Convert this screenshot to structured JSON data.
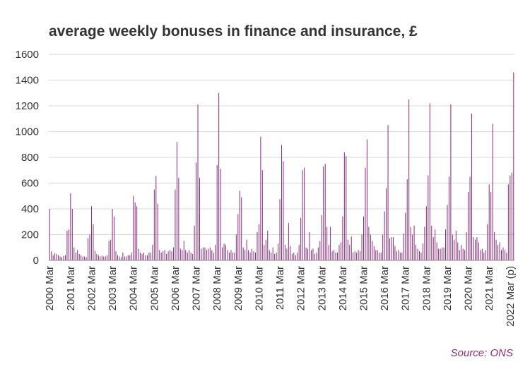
{
  "title": "average weekly bonuses in finance and insurance, £",
  "source": "Source: ONS",
  "colors": {
    "bar": "#8e2a7e",
    "axis": "#888888",
    "grid": "#d9d9d9",
    "text": "#333333"
  },
  "chart_data": {
    "type": "bar",
    "title": "average weekly bonuses in finance and insurance, £",
    "xlabel": "",
    "ylabel": "",
    "ylim": [
      0,
      1600
    ],
    "yticks": [
      0,
      200,
      400,
      600,
      800,
      1000,
      1200,
      1400,
      1600
    ],
    "grid": true,
    "legend": "none",
    "x_tick_labels": [
      "2000 Mar",
      "2001 Mar",
      "2002 Mar",
      "2003 Mar",
      "2004 Mar",
      "2005 Mar",
      "2006 Mar",
      "2007 Mar",
      "2008 Mar",
      "2009 Mar",
      "2010 Mar",
      "2011 Mar",
      "2012 Mar",
      "2013 Mar",
      "2014 Mar",
      "2015 Mar",
      "2016 Mar",
      "2017 Mar",
      "2018 Mar",
      "2019 Mar",
      "2020 Mar",
      "2021 Mar",
      "2022 Mar (p)"
    ],
    "frequency": "monthly",
    "start": "2000 Mar",
    "end": "2022 Mar (p)",
    "values": [
      400,
      70,
      40,
      55,
      50,
      40,
      30,
      25,
      35,
      40,
      230,
      240,
      520,
      400,
      100,
      60,
      80,
      50,
      40,
      30,
      30,
      25,
      170,
      200,
      420,
      280,
      75,
      50,
      40,
      30,
      35,
      30,
      30,
      40,
      150,
      160,
      400,
      340,
      70,
      40,
      30,
      25,
      60,
      30,
      30,
      40,
      40,
      60,
      500,
      450,
      420,
      90,
      60,
      50,
      60,
      40,
      40,
      60,
      60,
      120,
      550,
      655,
      440,
      80,
      60,
      70,
      80,
      50,
      70,
      80,
      70,
      100,
      550,
      920,
      640,
      90,
      80,
      150,
      80,
      60,
      80,
      60,
      50,
      270,
      760,
      1210,
      640,
      90,
      100,
      100,
      80,
      90,
      100,
      80,
      60,
      120,
      740,
      1300,
      710,
      100,
      130,
      120,
      80,
      60,
      80,
      60,
      60,
      200,
      360,
      540,
      490,
      100,
      80,
      160,
      80,
      60,
      90,
      70,
      60,
      220,
      280,
      960,
      700,
      120,
      160,
      230,
      80,
      60,
      100,
      50,
      60,
      130,
      475,
      895,
      770,
      120,
      90,
      290,
      110,
      50,
      60,
      40,
      60,
      120,
      330,
      700,
      720,
      100,
      90,
      220,
      80,
      90,
      50,
      60,
      100,
      150,
      350,
      730,
      750,
      260,
      120,
      260,
      70,
      80,
      60,
      60,
      120,
      140,
      340,
      840,
      810,
      160,
      120,
      185,
      60,
      70,
      60,
      80,
      70,
      200,
      340,
      720,
      940,
      260,
      200,
      150,
      110,
      80,
      80,
      60,
      60,
      200,
      380,
      560,
      1050,
      170,
      180,
      180,
      110,
      70,
      80,
      60,
      60,
      210,
      370,
      630,
      1250,
      260,
      200,
      270,
      120,
      90,
      70,
      60,
      130,
      260,
      420,
      660,
      1220,
      270,
      180,
      240,
      140,
      90,
      90,
      100,
      100,
      240,
      430,
      650,
      1210,
      200,
      160,
      230,
      140,
      80,
      120,
      90,
      80,
      220,
      530,
      650,
      1140,
      180,
      160,
      180,
      140,
      80,
      90,
      60,
      80,
      280,
      590,
      530,
      1060,
      220,
      160,
      120,
      140,
      80,
      100,
      80,
      60,
      590,
      660,
      680,
      1460
    ]
  }
}
